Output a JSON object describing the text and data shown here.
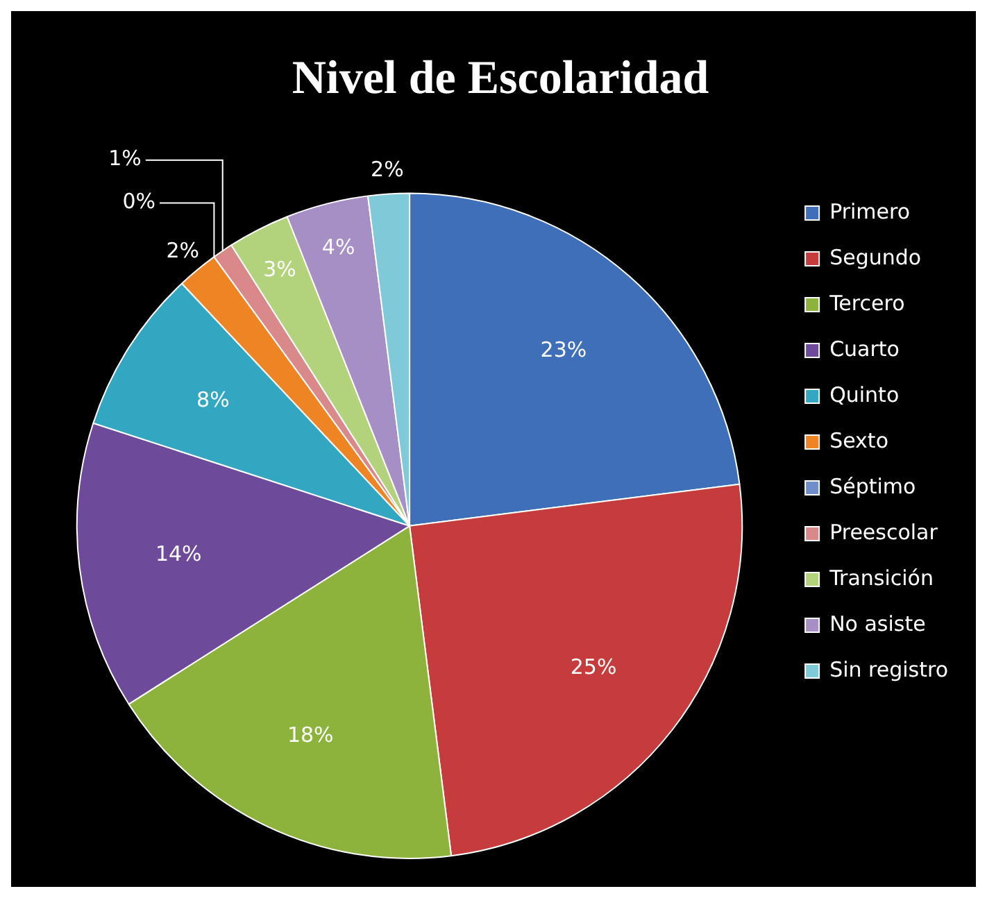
{
  "chart_data": {
    "type": "pie",
    "title": "Nivel de Escolaridad",
    "categories": [
      "Primero",
      "Segundo",
      "Tercero",
      "Cuarto",
      "Quinto",
      "Sexto",
      "Séptimo",
      "Preescolar",
      "Transición",
      "No asiste",
      "Sin registro"
    ],
    "values": [
      23,
      25,
      18,
      14,
      8,
      2,
      0,
      1,
      3,
      4,
      2
    ],
    "value_labels": [
      "23%",
      "25%",
      "18%",
      "14%",
      "8%",
      "2%",
      "0%",
      "1%",
      "3%",
      "4%",
      "2%"
    ],
    "colors": [
      "#3e6fb8",
      "#c63b3b",
      "#8db33c",
      "#6e4a9a",
      "#33a6c2",
      "#ee8424",
      "#6f8fc8",
      "#d9898a",
      "#b3d27c",
      "#a58fc4",
      "#7fc9d9"
    ],
    "legend": "right"
  }
}
